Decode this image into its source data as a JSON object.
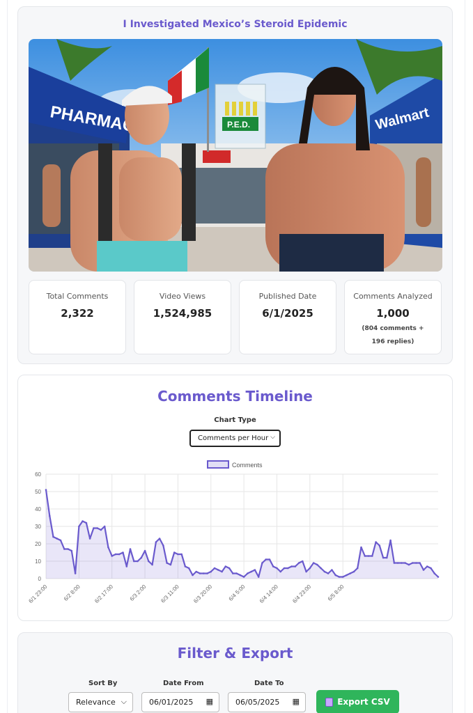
{
  "video": {
    "title": "I Investigated Mexico’s Steroid Epidemic",
    "thumbnail": {
      "store_sign_left": "PHARMACY",
      "store_sign_right": "Walmart",
      "bag_label": "P.E.D."
    }
  },
  "stats": [
    {
      "label": "Total Comments",
      "value": "2,322",
      "sub": ""
    },
    {
      "label": "Video Views",
      "value": "1,524,985",
      "sub": ""
    },
    {
      "label": "Published Date",
      "value": "6/1/2025",
      "sub": ""
    },
    {
      "label": "Comments Analyzed",
      "value": "1,000",
      "sub": "(804 comments + 196 replies)"
    }
  ],
  "timeline": {
    "title": "Comments Timeline",
    "chart_type_label": "Chart Type",
    "chart_type_value": "Comments per Hour",
    "accent": "#6a5acd"
  },
  "chart_data": {
    "type": "area",
    "legend": "Comments",
    "legend_position": "top-center",
    "grid": true,
    "ylim": [
      0,
      60
    ],
    "y_ticks": [
      0,
      10,
      20,
      30,
      40,
      50,
      60
    ],
    "x_tick_labels": [
      "6/1 23:00",
      "6/2 8:00",
      "6/2 17:00",
      "6/3 2:00",
      "6/3 11:00",
      "6/3 20:00",
      "6/4 5:00",
      "6/4 14:00",
      "6/4 23:00",
      "6/5 8:00"
    ],
    "x_tick_every": 9,
    "values": [
      51,
      36,
      24,
      23,
      22,
      17,
      17,
      16,
      3,
      30,
      33,
      32,
      23,
      29,
      29,
      28,
      30,
      18,
      13,
      14,
      14,
      15,
      7,
      17,
      10,
      10,
      12,
      16,
      10,
      8,
      21,
      23,
      19,
      9,
      8,
      15,
      14,
      14,
      7,
      6,
      2,
      4,
      3,
      3,
      3,
      4,
      6,
      5,
      4,
      7,
      6,
      3,
      3,
      2,
      1,
      3,
      4,
      5,
      1,
      9,
      11,
      11,
      7,
      6,
      4,
      6,
      6,
      7,
      7,
      9,
      10,
      4,
      6,
      9,
      8,
      6,
      4,
      3,
      5,
      2,
      1,
      1,
      2,
      3,
      4,
      6,
      18,
      13,
      13,
      13,
      21,
      19,
      12,
      12,
      22,
      9,
      9,
      9,
      9,
      8,
      9,
      9,
      9,
      5,
      7,
      6,
      3,
      1
    ]
  },
  "filter": {
    "title": "Filter & Export",
    "sort_label": "Sort By",
    "sort_value": "Relevance",
    "date_from_label": "Date From",
    "date_from_value": "06/01/2025",
    "date_to_label": "Date To",
    "date_to_value": "06/05/2025",
    "export_label": "Export CSV"
  }
}
